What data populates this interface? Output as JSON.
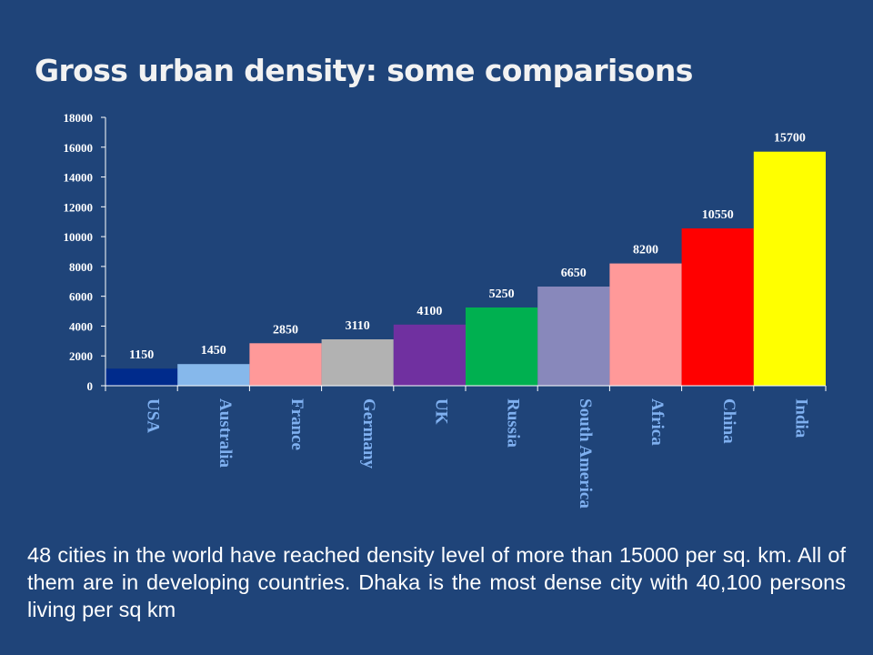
{
  "slide": {
    "title": "Gross urban density: some comparisons",
    "caption": "48 cities in the world have reached density level of more than 15000 per sq. km. All of them are in developing countries. Dhaka is the most dense city with 40,100 persons living per sq km"
  },
  "colors": {
    "background": "#1f4479",
    "axis": "#ffffff",
    "tick_label": "#ffffff",
    "category_label": "#7fb0f0",
    "data_label": "#ffffff"
  },
  "chart_data": {
    "type": "bar",
    "title": "",
    "xlabel": "",
    "ylabel": "",
    "ylim": [
      0,
      18000
    ],
    "yticks": [
      0,
      2000,
      4000,
      6000,
      8000,
      10000,
      12000,
      14000,
      16000,
      18000
    ],
    "grid": false,
    "legend": "none",
    "categories": [
      "USA",
      "Australia",
      "France",
      "Germany",
      "UK",
      "Russia",
      "South America",
      "Africa",
      "China",
      "India"
    ],
    "values": [
      1150,
      1450,
      2850,
      3110,
      4100,
      5250,
      6650,
      8200,
      10550,
      15700
    ],
    "bar_colors": [
      "#002b8c",
      "#86b8eb",
      "#ff9999",
      "#b2b2b2",
      "#7030a0",
      "#00b050",
      "#8888bb",
      "#ff9999",
      "#ff0000",
      "#ffff00"
    ]
  }
}
